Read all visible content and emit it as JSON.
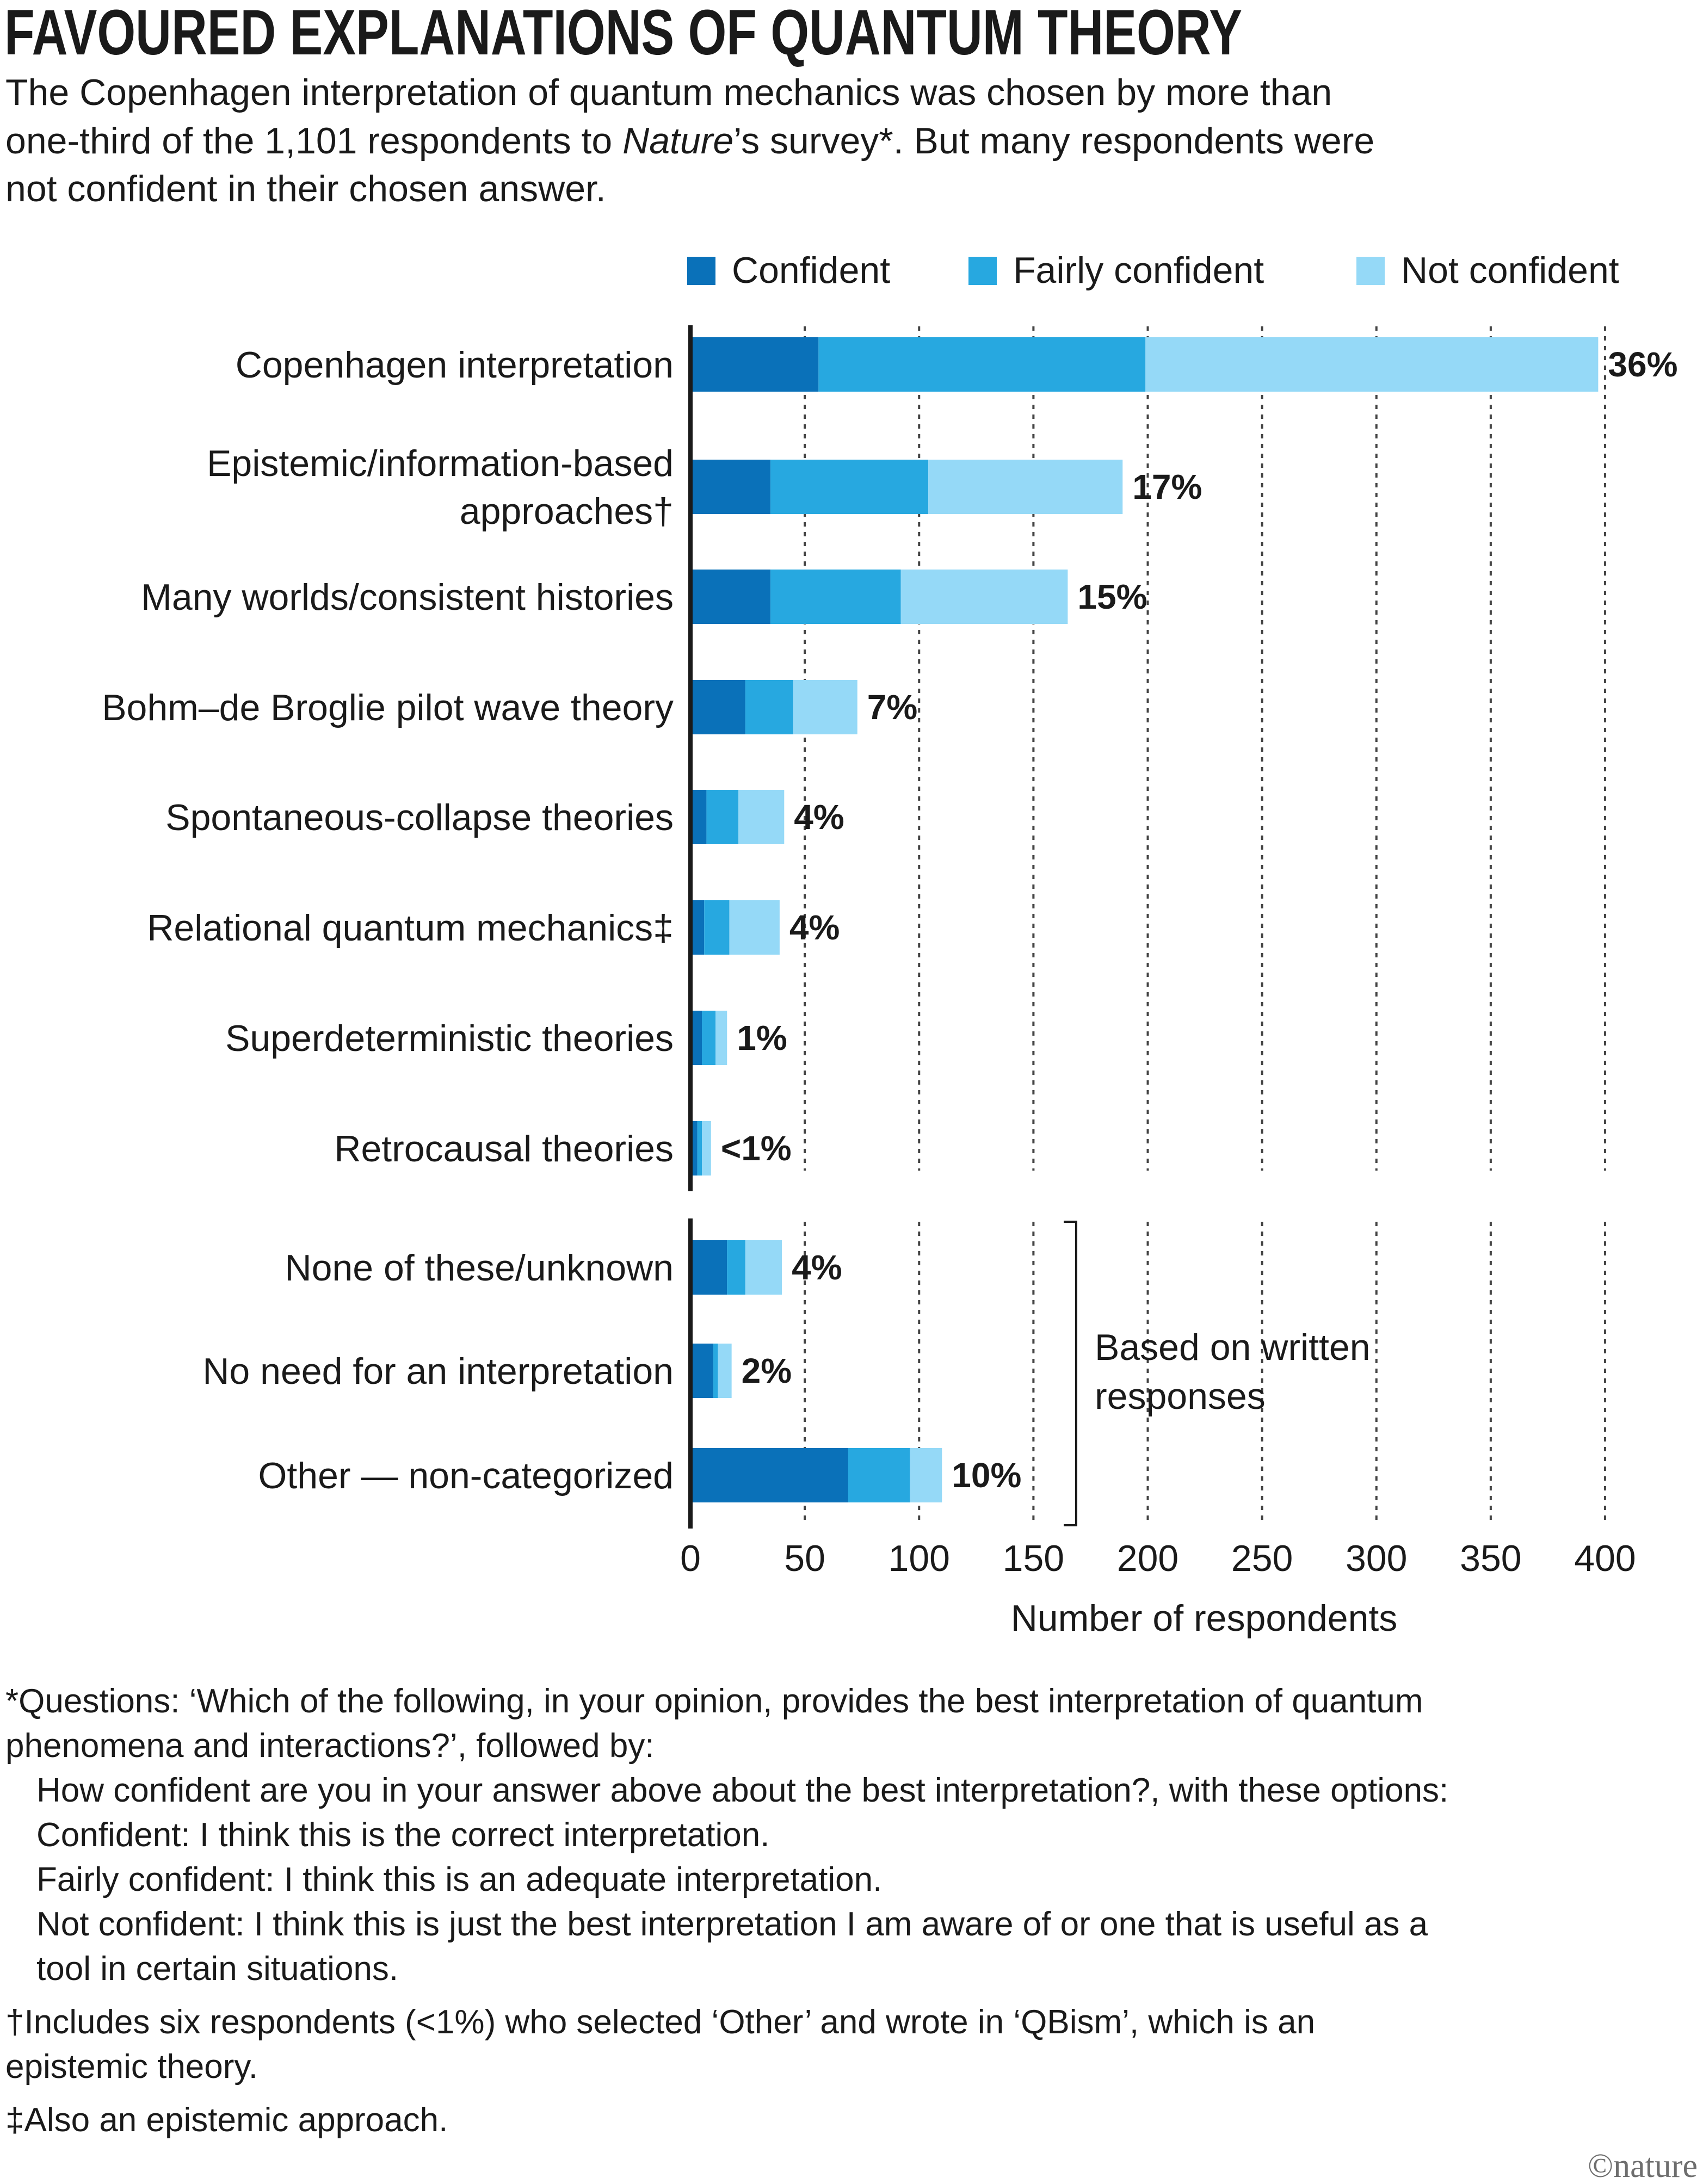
{
  "chart_data": {
    "type": "bar",
    "orientation": "horizontal",
    "stacked": true,
    "title": "FAVOURED EXPLANATIONS OF QUANTUM THEORY",
    "subtitle": {
      "line1": "The Copenhagen interpretation of quantum mechanics was chosen by more than",
      "line2_before": "one-third of the 1,101 respondents to ",
      "line2_italic": "Nature",
      "line2_after": "’s survey*. But many respondents were",
      "line3": "not confident in their chosen answer."
    },
    "legend": {
      "position": "top-right",
      "items": [
        {
          "label": "Confident",
          "color": "#0a71b9"
        },
        {
          "label": "Fairly confident",
          "color": "#27a8e0"
        },
        {
          "label": "Not confident",
          "color": "#95d9f7"
        }
      ]
    },
    "xlabel": "Number of respondents",
    "xlim": [
      0,
      400
    ],
    "xticks": [
      "0",
      "50",
      "100",
      "150",
      "200",
      "250",
      "300",
      "350",
      "400"
    ],
    "categories": [
      {
        "label_lines": [
          "Copenhagen interpretation"
        ],
        "values": [
          56,
          143,
          198
        ],
        "pct": "36%",
        "group": "main"
      },
      {
        "label_lines": [
          "Epistemic/information-based",
          "approaches†"
        ],
        "values": [
          35,
          69,
          85
        ],
        "pct": "17%",
        "group": "main"
      },
      {
        "label_lines": [
          "Many worlds/consistent histories"
        ],
        "values": [
          35,
          57,
          73
        ],
        "pct": "15%",
        "group": "main"
      },
      {
        "label_lines": [
          "Bohm–de Broglie pilot wave theory"
        ],
        "values": [
          24,
          21,
          28
        ],
        "pct": "7%",
        "group": "main"
      },
      {
        "label_lines": [
          "Spontaneous-collapse theories"
        ],
        "values": [
          7,
          14,
          20
        ],
        "pct": "4%",
        "group": "main"
      },
      {
        "label_lines": [
          "Relational quantum mechanics‡"
        ],
        "values": [
          6,
          11,
          22
        ],
        "pct": "4%",
        "group": "main"
      },
      {
        "label_lines": [
          "Superdeterministic theories"
        ],
        "values": [
          5,
          6,
          5
        ],
        "pct": "1%",
        "group": "main"
      },
      {
        "label_lines": [
          "Retrocausal theories"
        ],
        "values": [
          3,
          2,
          4
        ],
        "pct": "<1%",
        "group": "main"
      },
      {
        "label_lines": [
          "None of these/unknown"
        ],
        "values": [
          16,
          8,
          16
        ],
        "pct": "4%",
        "group": "written"
      },
      {
        "label_lines": [
          "No need for an interpretation"
        ],
        "values": [
          10,
          2,
          6
        ],
        "pct": "2%",
        "group": "written"
      },
      {
        "label_lines": [
          "Other — non-categorized"
        ],
        "values": [
          69,
          27,
          14
        ],
        "pct": "10%",
        "group": "written"
      }
    ],
    "bracket_label_lines": [
      "Based on written",
      "responses"
    ]
  },
  "footnotes": {
    "q_line1": "*Questions: ‘Which of the following, in your opinion, provides the best interpretation of quantum",
    "q_line2": "phenomena and interactions?’, followed by:",
    "q_line3": "How confident are you in your answer above about the best interpretation?, with these options:",
    "q_line4": "Confident: I think this is the correct interpretation.",
    "q_line5": "Fairly confident: I think this is an adequate interpretation.",
    "q_line6": "Not confident: I think this is just the best interpretation I am aware of or one that is useful as a",
    "q_line7": "tool in certain situations.",
    "dagger_line1": "†Includes six respondents (<1%) who selected ‘Other’ and wrote in ‘QBism’, which is an",
    "dagger_line2": "epistemic theory.",
    "ddagger_line": "‡Also an epistemic approach."
  },
  "credit": "©nature"
}
